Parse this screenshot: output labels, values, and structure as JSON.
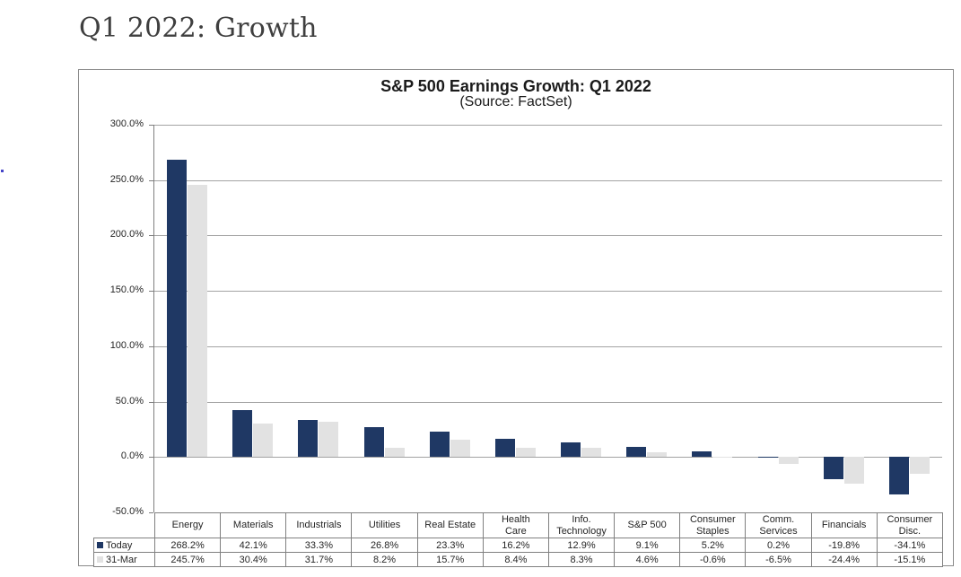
{
  "page": {
    "title": "Q1 2022: Growth"
  },
  "chart_data": {
    "type": "bar",
    "title": "S&P 500 Earnings Growth: Q1 2022",
    "subtitle": "(Source: FactSet)",
    "categories": [
      "Energy",
      "Materials",
      "Industrials",
      "Utilities",
      "Real Estate",
      "Health Care",
      "Info. Technology",
      "S&P 500",
      "Consumer Staples",
      "Comm. Services",
      "Financials",
      "Consumer Disc."
    ],
    "category_labels": [
      "Energy",
      "Materials",
      "Industrials",
      "Utilities",
      "Real Estate",
      "Health\nCare",
      "Info.\nTechnology",
      "S&P 500",
      "Consumer\nStaples",
      "Comm.\nServices",
      "Financials",
      "Consumer\nDisc."
    ],
    "series": [
      {
        "name": "Today",
        "color": "#1F3864",
        "values": [
          268.2,
          42.1,
          33.3,
          26.8,
          23.3,
          16.2,
          12.9,
          9.1,
          5.2,
          0.2,
          -19.8,
          -34.1
        ]
      },
      {
        "name": "31-Mar",
        "color": "#E2E2E2",
        "values": [
          245.7,
          30.4,
          31.7,
          8.2,
          15.7,
          8.4,
          8.3,
          4.6,
          -0.6,
          -6.5,
          -24.4,
          -15.1
        ]
      }
    ],
    "ylim": [
      -50,
      300
    ],
    "ytick_step": 50,
    "ytick_labels": [
      "300.0%",
      "250.0%",
      "200.0%",
      "150.0%",
      "100.0%",
      "50.0%",
      "0.0%",
      "-50.0%"
    ],
    "value_suffix": "%",
    "grid": true,
    "legend_position": "table-left",
    "colors": {
      "gridline": "#a3a3a3",
      "axis": "#7f7f7f",
      "table_border": "#808080",
      "text": "#262626"
    }
  }
}
